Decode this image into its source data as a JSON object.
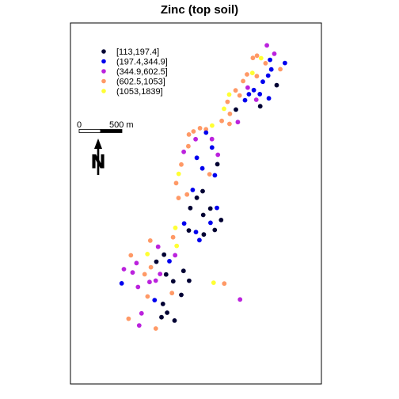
{
  "title": "Zinc (top soil)",
  "legend": {
    "placement": "top-left",
    "classes": [
      {
        "label": "[113,197.4]",
        "color": "#000033"
      },
      {
        "label": "(197.4,344.9]",
        "color": "#0000ee"
      },
      {
        "label": "(344.9,602.5]",
        "color": "#bb22dd"
      },
      {
        "label": "(602.5,1053]",
        "color": "#ff9966"
      },
      {
        "label": "(1053,1839]",
        "color": "#ffff33"
      }
    ]
  },
  "scale_bar": {
    "start_label": "0",
    "end_label": "500 m",
    "length_m": 500
  },
  "north_arrow": {
    "label": "N"
  },
  "chart_data": {
    "type": "scatter",
    "title": "Zinc (top soil)",
    "x_unit": "m",
    "y_unit": "m",
    "xlim": [
      178200,
      181800
    ],
    "ylim": [
      329550,
      333850
    ],
    "points": [
      [
        181018,
        333583,
        3
      ],
      [
        181124,
        333483,
        3
      ],
      [
        181063,
        333411,
        2
      ],
      [
        181276,
        333373,
        2
      ],
      [
        181211,
        333299,
        4
      ],
      [
        181081,
        333296,
        2
      ],
      [
        180998,
        333370,
        4
      ],
      [
        180935,
        333430,
        5
      ],
      [
        180876,
        333461,
        4
      ],
      [
        180816,
        333433,
        4
      ],
      [
        181036,
        333223,
        2
      ],
      [
        181158,
        333109,
        1
      ],
      [
        180960,
        333150,
        2
      ],
      [
        180873,
        333216,
        4
      ],
      [
        180810,
        333254,
        5
      ],
      [
        180733,
        333237,
        4
      ],
      [
        180677,
        333158,
        4
      ],
      [
        180743,
        333080,
        3
      ],
      [
        180830,
        333050,
        2
      ],
      [
        180916,
        333002,
        2
      ],
      [
        181046,
        332952,
        2
      ],
      [
        180922,
        332858,
        1
      ],
      [
        180865,
        332935,
        3
      ],
      [
        180760,
        333001,
        2
      ],
      [
        180704,
        332930,
        2
      ],
      [
        180627,
        332986,
        4
      ],
      [
        180569,
        333047,
        4
      ],
      [
        180477,
        332998,
        5
      ],
      [
        180453,
        332911,
        4
      ],
      [
        180403,
        332828,
        5
      ],
      [
        180487,
        332767,
        4
      ],
      [
        180573,
        332818,
        1
      ],
      [
        180601,
        332669,
        3
      ],
      [
        180481,
        332648,
        4
      ],
      [
        180370,
        332684,
        4
      ],
      [
        180232,
        332628,
        5
      ],
      [
        180144,
        332584,
        4
      ],
      [
        180058,
        332597,
        4
      ],
      [
        179965,
        332558,
        4
      ],
      [
        179899,
        332521,
        4
      ],
      [
        179995,
        332466,
        3
      ],
      [
        180145,
        332544,
        2
      ],
      [
        180229,
        332467,
        3
      ],
      [
        180230,
        332367,
        2
      ],
      [
        180315,
        332280,
        3
      ],
      [
        180308,
        332168,
        1
      ],
      [
        180271,
        332036,
        2
      ],
      [
        180195,
        332048,
        4
      ],
      [
        180092,
        332118,
        2
      ],
      [
        180012,
        332244,
        2
      ],
      [
        179891,
        332382,
        4
      ],
      [
        179825,
        332315,
        3
      ],
      [
        179790,
        332164,
        4
      ],
      [
        179752,
        332053,
        5
      ],
      [
        179716,
        331942,
        4
      ],
      [
        179750,
        331765,
        4
      ],
      [
        179872,
        331807,
        4
      ],
      [
        179953,
        331861,
        2
      ],
      [
        180013,
        331768,
        1
      ],
      [
        180097,
        331846,
        1
      ],
      [
        179919,
        331645,
        1
      ],
      [
        180104,
        331563,
        1
      ],
      [
        180207,
        331640,
        1
      ],
      [
        180301,
        331647,
        2
      ],
      [
        180361,
        331503,
        1
      ],
      [
        180270,
        331384,
        1
      ],
      [
        180209,
        331470,
        2
      ],
      [
        180112,
        331330,
        1
      ],
      [
        180050,
        331263,
        2
      ],
      [
        180000,
        331360,
        2
      ],
      [
        179898,
        331378,
        1
      ],
      [
        179831,
        331461,
        2
      ],
      [
        179705,
        331410,
        5
      ],
      [
        179672,
        331297,
        4
      ],
      [
        179724,
        331195,
        5
      ],
      [
        179701,
        331083,
        3
      ],
      [
        179620,
        331013,
        2
      ],
      [
        179542,
        331090,
        1
      ],
      [
        179457,
        331184,
        3
      ],
      [
        179345,
        331258,
        4
      ],
      [
        179304,
        331097,
        5
      ],
      [
        179432,
        331006,
        1
      ],
      [
        179354,
        330940,
        4
      ],
      [
        179264,
        330857,
        4
      ],
      [
        179334,
        330765,
        3
      ],
      [
        179423,
        330781,
        3
      ],
      [
        179486,
        330860,
        3
      ],
      [
        179572,
        330854,
        1
      ],
      [
        179674,
        330773,
        1
      ],
      [
        179822,
        330897,
        1
      ],
      [
        179902,
        330780,
        1
      ],
      [
        179790,
        330611,
        1
      ],
      [
        179656,
        330633,
        4
      ],
      [
        179526,
        330503,
        1
      ],
      [
        179407,
        330549,
        2
      ],
      [
        179306,
        330592,
        4
      ],
      [
        179169,
        330705,
        3
      ],
      [
        179092,
        330878,
        3
      ],
      [
        179147,
        330990,
        3
      ],
      [
        179067,
        331082,
        4
      ],
      [
        178967,
        330917,
        3
      ],
      [
        178935,
        330749,
        2
      ],
      [
        179220,
        330391,
        3
      ],
      [
        179506,
        330345,
        1
      ],
      [
        179587,
        330399,
        1
      ],
      [
        179693,
        330305,
        1
      ],
      [
        179424,
        330210,
        4
      ],
      [
        179186,
        330247,
        3
      ],
      [
        179034,
        330327,
        4
      ],
      [
        180253,
        330756,
        5
      ],
      [
        180406,
        330746,
        4
      ],
      [
        180632,
        330556,
        3
      ]
    ]
  }
}
